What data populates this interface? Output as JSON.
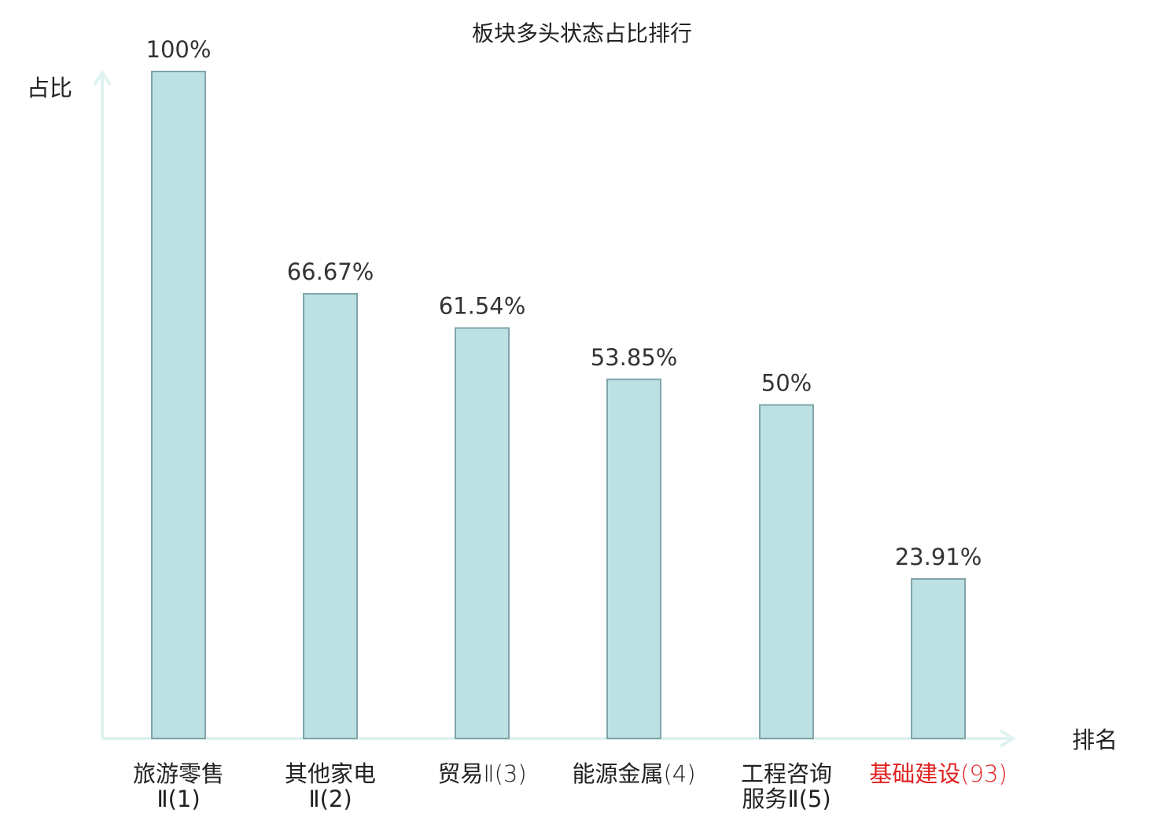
{
  "chart_data": {
    "type": "bar",
    "title": "板块多头状态占比排行",
    "ylabel": "占比",
    "xlabel": "排名",
    "ylim": [
      0,
      100
    ],
    "grid": false,
    "legend": "none",
    "categories": [
      {
        "name_lines": [
          "旅游零售"
        ],
        "suffix": "Ⅱ(1)",
        "highlight": false
      },
      {
        "name_lines": [
          "其他家电"
        ],
        "suffix": "Ⅱ(2)",
        "highlight": false
      },
      {
        "name_lines": [
          "贸易"
        ],
        "suffix": "Ⅱ(3)",
        "highlight": false,
        "inline": true
      },
      {
        "name_lines": [
          "能源金属"
        ],
        "suffix": "(4)",
        "highlight": false,
        "inline": true
      },
      {
        "name_lines": [
          "工程咨询",
          "服务"
        ],
        "suffix": "Ⅱ(5)",
        "highlight": false
      },
      {
        "name_lines": [
          "基础建设"
        ],
        "suffix": "(93)",
        "highlight": true,
        "inline": true
      }
    ],
    "values": [
      100,
      66.67,
      61.54,
      53.85,
      50,
      23.91
    ],
    "value_labels": [
      "100%",
      "66.67%",
      "61.54%",
      "53.85%",
      "50%",
      "23.91%"
    ],
    "colors": {
      "bar_fill": "#bde0e3",
      "bar_stroke": "#7fa5a9",
      "axis": "#dff2ef",
      "text": "#222222",
      "highlight": "#e02020"
    }
  }
}
